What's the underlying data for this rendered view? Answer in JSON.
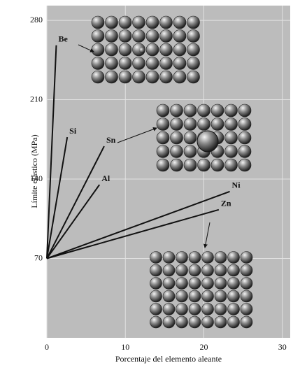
{
  "chart_data": {
    "type": "line",
    "xlabel": "Porcentaje del elemento aleante",
    "ylabel": "Límite elástico (MPa)",
    "xlim": [
      0,
      31
    ],
    "ylim": [
      0,
      293
    ],
    "xticks": [
      0,
      10,
      20,
      30
    ],
    "yticks": [
      70,
      140,
      210,
      280
    ],
    "grid": true,
    "series": [
      {
        "name": "Be",
        "color": "#111111",
        "x": [
          0,
          1.2
        ],
        "values": [
          70,
          258
        ]
      },
      {
        "name": "Si",
        "color": "#111111",
        "x": [
          0,
          2.6
        ],
        "values": [
          70,
          177
        ]
      },
      {
        "name": "Sn",
        "color": "#111111",
        "x": [
          0,
          7.3
        ],
        "values": [
          70,
          169
        ]
      },
      {
        "name": "Al",
        "color": "#111111",
        "x": [
          0,
          6.7
        ],
        "values": [
          70,
          135
        ]
      },
      {
        "name": "Ni",
        "color": "#111111",
        "x": [
          0,
          23.3
        ],
        "values": [
          70,
          129
        ]
      },
      {
        "name": "Zn",
        "color": "#111111",
        "x": [
          0,
          21.9
        ],
        "values": [
          70,
          113
        ]
      }
    ]
  }
}
